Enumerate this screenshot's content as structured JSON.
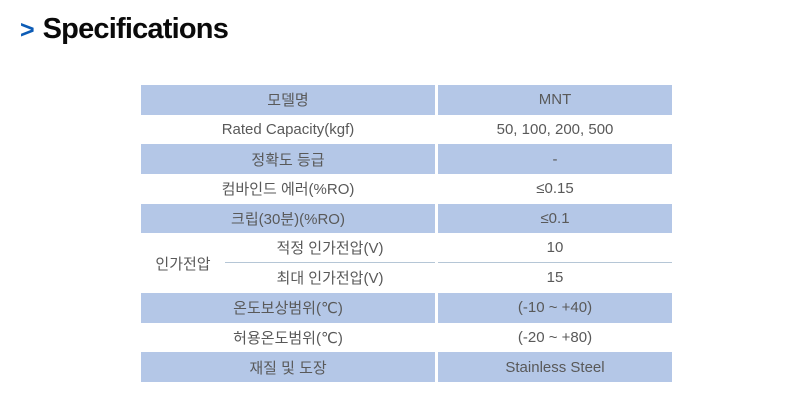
{
  "heading": {
    "marker": ">",
    "title": "Specifications"
  },
  "colors": {
    "row_shade": "#b4c7e7",
    "table_text": "#595959",
    "heading_marker_blue": "#0d5cb6",
    "heading_text": "#0a0a0a",
    "subrow_divider": "#b5c6d6"
  },
  "table": {
    "rows": [
      {
        "label": "모델명",
        "value": "MNT",
        "shaded": true
      },
      {
        "label": "Rated Capacity(kgf)",
        "value": "50, 100, 200, 500",
        "shaded": false
      },
      {
        "label": "정확도 등급",
        "value": "-",
        "shaded": true
      },
      {
        "label": "컴바인드 에러(%RO)",
        "value": "≤0.15",
        "shaded": false
      },
      {
        "label": "크립(30분)(%RO)",
        "value": "≤0.1",
        "shaded": true
      },
      {
        "group": "인가전압",
        "shaded": false,
        "subrows": [
          {
            "label": "적정 인가전압(V)",
            "value": "10"
          },
          {
            "label": "최대 인가전압(V)",
            "value": "15"
          }
        ]
      },
      {
        "label": "온도보상범위(℃)",
        "value": "(-10 ~ +40)",
        "shaded": true
      },
      {
        "label": "허용온도범위(℃)",
        "value": "(-20 ~ +80)",
        "shaded": false
      },
      {
        "label": "재질 및 도장",
        "value": "Stainless Steel",
        "shaded": true
      }
    ]
  }
}
